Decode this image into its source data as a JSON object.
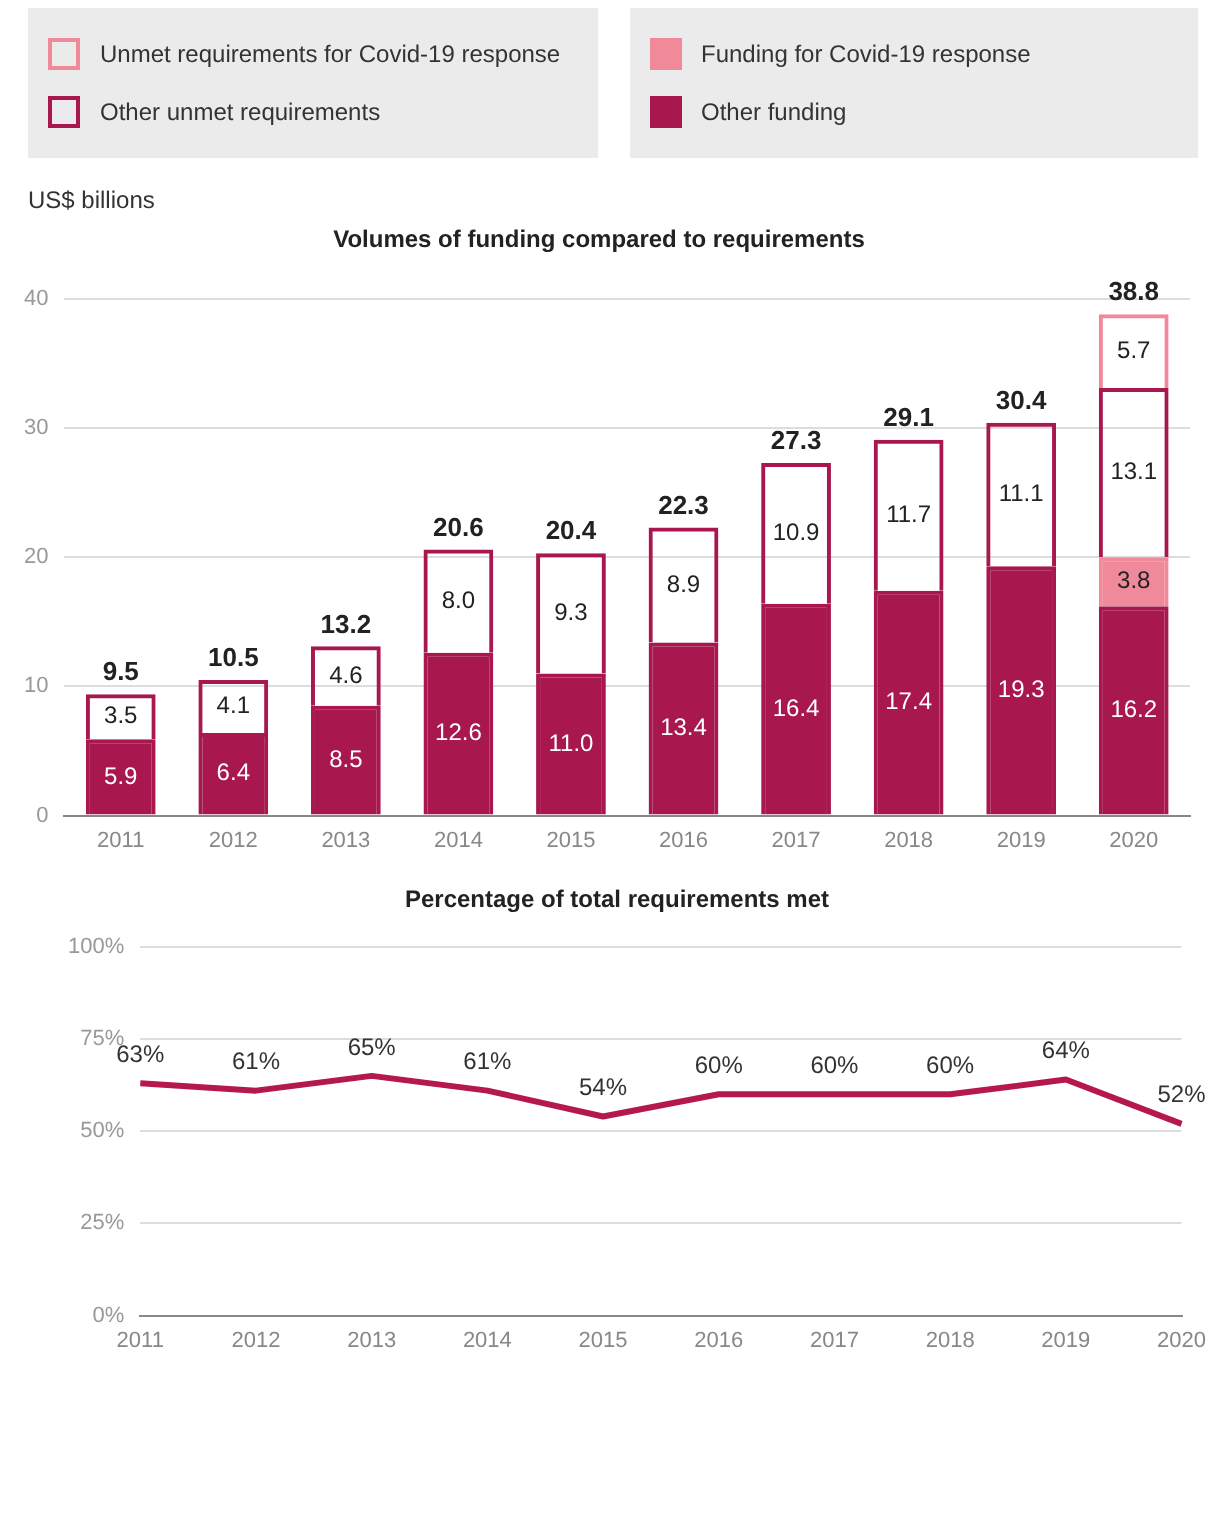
{
  "chart_data": [
    {
      "type": "bar",
      "title": "Volumes of funding compared to requirements",
      "ylabel": "US$ billions",
      "stacked": true,
      "categories": [
        "2011",
        "2012",
        "2013",
        "2014",
        "2015",
        "2016",
        "2017",
        "2018",
        "2019",
        "2020"
      ],
      "series": [
        {
          "name": "Other funding",
          "color": "#a8174e",
          "values": [
            5.9,
            6.4,
            8.5,
            12.6,
            11.0,
            13.4,
            16.4,
            17.4,
            19.3,
            16.2
          ],
          "value_labels": [
            "5.9",
            "6.4",
            "8.5",
            "12.6",
            "11.0",
            "13.4",
            "16.4",
            "17.4",
            "19.3",
            "16.2"
          ]
        },
        {
          "name": "Funding for Covid-19 response",
          "color": "#f08a9b",
          "values": [
            null,
            null,
            null,
            null,
            null,
            null,
            null,
            null,
            null,
            3.8
          ],
          "value_labels": [
            null,
            null,
            null,
            null,
            null,
            null,
            null,
            null,
            null,
            "3.8"
          ]
        },
        {
          "name": "Other unmet requirements",
          "color": "#a8174e",
          "values": [
            3.5,
            4.1,
            4.6,
            8.0,
            9.3,
            8.9,
            10.9,
            11.7,
            11.1,
            13.1
          ],
          "value_labels": [
            "3.5",
            "4.1",
            "4.6",
            "8.0",
            "9.3",
            "8.9",
            "10.9",
            "11.7",
            "11.1",
            "13.1"
          ]
        },
        {
          "name": "Unmet requirements for Covid-19 response",
          "color": "#f08a9b",
          "values": [
            null,
            null,
            null,
            null,
            null,
            null,
            null,
            null,
            null,
            5.7
          ],
          "value_labels": [
            null,
            null,
            null,
            null,
            null,
            null,
            null,
            null,
            null,
            "5.7"
          ]
        }
      ],
      "totals": [
        "9.5",
        "10.5",
        "13.2",
        "20.6",
        "20.4",
        "22.3",
        "27.3",
        "29.1",
        "30.4",
        "38.8"
      ],
      "ylim": [
        0,
        40
      ],
      "yticks": [
        0,
        10,
        20,
        30,
        40
      ],
      "grid": "y",
      "legend": "top"
    },
    {
      "type": "line",
      "title": "Percentage of total requirements met",
      "categories": [
        "2011",
        "2012",
        "2013",
        "2014",
        "2015",
        "2016",
        "2017",
        "2018",
        "2019",
        "2020"
      ],
      "series": [
        {
          "color": "#b5174f",
          "values": [
            63,
            61,
            65,
            61,
            54,
            60,
            60,
            60,
            64,
            52
          ],
          "value_labels": [
            "63%",
            "61%",
            "65%",
            "61%",
            "54%",
            "60%",
            "60%",
            "60%",
            "64%",
            "52%"
          ]
        }
      ],
      "ylim": [
        0,
        100
      ],
      "yticks": [
        {
          "value": 0,
          "label": "0%"
        },
        {
          "value": 25,
          "label": "25%"
        },
        {
          "value": 50,
          "label": "50%"
        },
        {
          "value": 75,
          "label": "75%"
        },
        {
          "value": 100,
          "label": "100%"
        }
      ],
      "grid": "y",
      "marker": "none",
      "line_style": "solid"
    }
  ]
}
